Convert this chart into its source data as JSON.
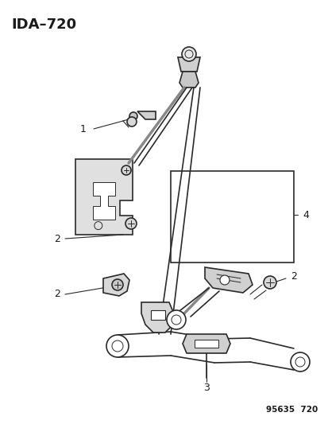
{
  "title": "IDA–720",
  "part_number": "95635  720",
  "bg_color": "#ffffff",
  "line_color": "#2a2a2a",
  "label_color": "#1a1a1a",
  "figsize": [
    4.14,
    5.33
  ],
  "dpi": 100
}
